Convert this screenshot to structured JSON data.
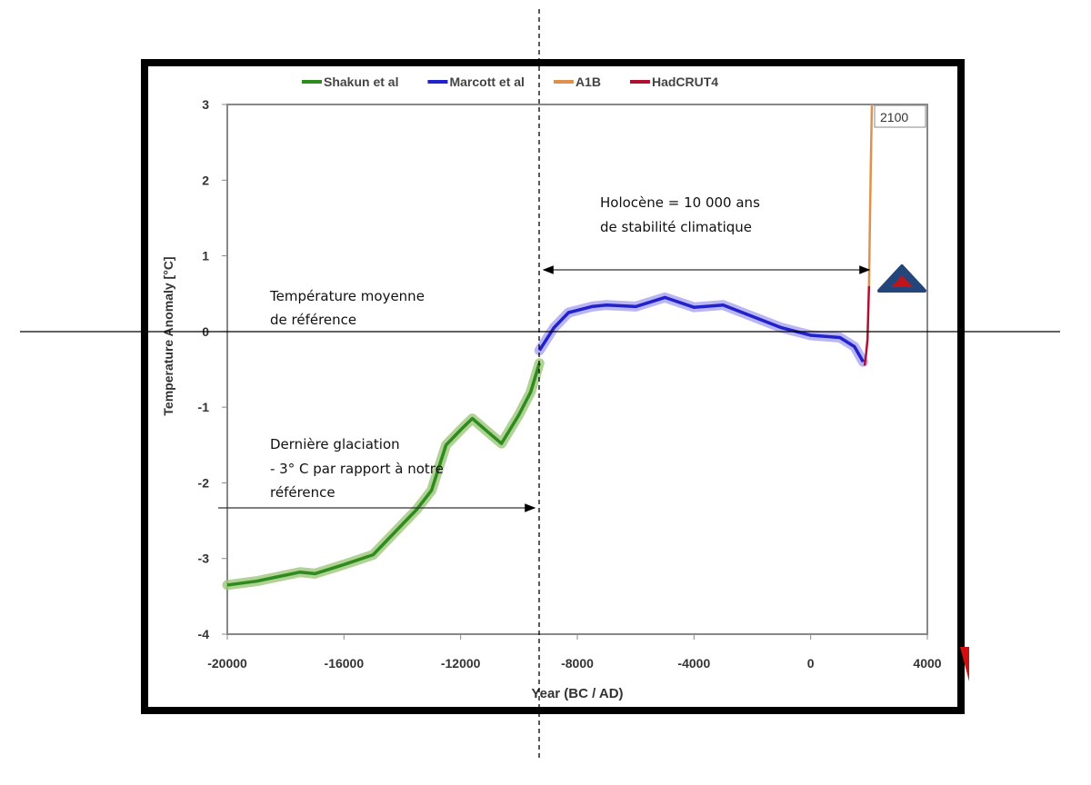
{
  "chart_data": {
    "type": "line",
    "xlabel": "Year (BC / AD)",
    "ylabel": "Temperature Anomaly [°C]",
    "xlim": [
      -20000,
      4000
    ],
    "ylim": [
      -4,
      3
    ],
    "xticks": [
      -20000,
      -16000,
      -12000,
      -8000,
      -4000,
      0,
      4000
    ],
    "yticks": [
      3,
      2,
      1,
      0,
      -1,
      -2,
      -3,
      -4
    ],
    "legend_position": "top",
    "end_label": "2100",
    "series": [
      {
        "name": "Shakun et al",
        "color": "#2e8b1e",
        "band": "#9cc77a",
        "x": [
          -20000,
          -19000,
          -18000,
          -17500,
          -17000,
          -16000,
          -15000,
          -14000,
          -13500,
          -13000,
          -12500,
          -12000,
          -11600,
          -11000,
          -10600,
          -10000,
          -9600,
          -9300
        ],
        "y": [
          -3.35,
          -3.3,
          -3.22,
          -3.18,
          -3.2,
          -3.08,
          -2.95,
          -2.55,
          -2.35,
          -2.1,
          -1.5,
          -1.3,
          -1.15,
          -1.35,
          -1.48,
          -1.1,
          -0.8,
          -0.42
        ]
      },
      {
        "name": "Marcott et al",
        "color": "#2222cc",
        "band": "#a9a3f0",
        "x": [
          -9300,
          -8800,
          -8300,
          -7500,
          -7000,
          -6000,
          -5000,
          -4000,
          -3000,
          -2000,
          -1000,
          0,
          1000,
          1500,
          1800
        ],
        "y": [
          -0.25,
          0.05,
          0.25,
          0.33,
          0.35,
          0.33,
          0.45,
          0.32,
          0.35,
          0.2,
          0.05,
          -0.05,
          -0.08,
          -0.2,
          -0.4
        ]
      },
      {
        "name": "A1B",
        "color": "#e0904a",
        "x": [
          2000,
          2030,
          2060,
          2100
        ],
        "y": [
          0.6,
          1.4,
          2.2,
          3.0
        ]
      },
      {
        "name": "HadCRUT4",
        "color": "#b01030",
        "x": [
          1850,
          1900,
          1950,
          2000
        ],
        "y": [
          -0.45,
          -0.3,
          -0.1,
          0.6
        ]
      }
    ],
    "annotations": {
      "holocene": [
        "Holocène = 10 000 ans",
        "de stabilité climatique"
      ],
      "reference": [
        "Température moyenne",
        "de référence"
      ],
      "glaciation": [
        "Dernière glaciation",
        "- 3° C par rapport à notre",
        "référence"
      ]
    }
  }
}
